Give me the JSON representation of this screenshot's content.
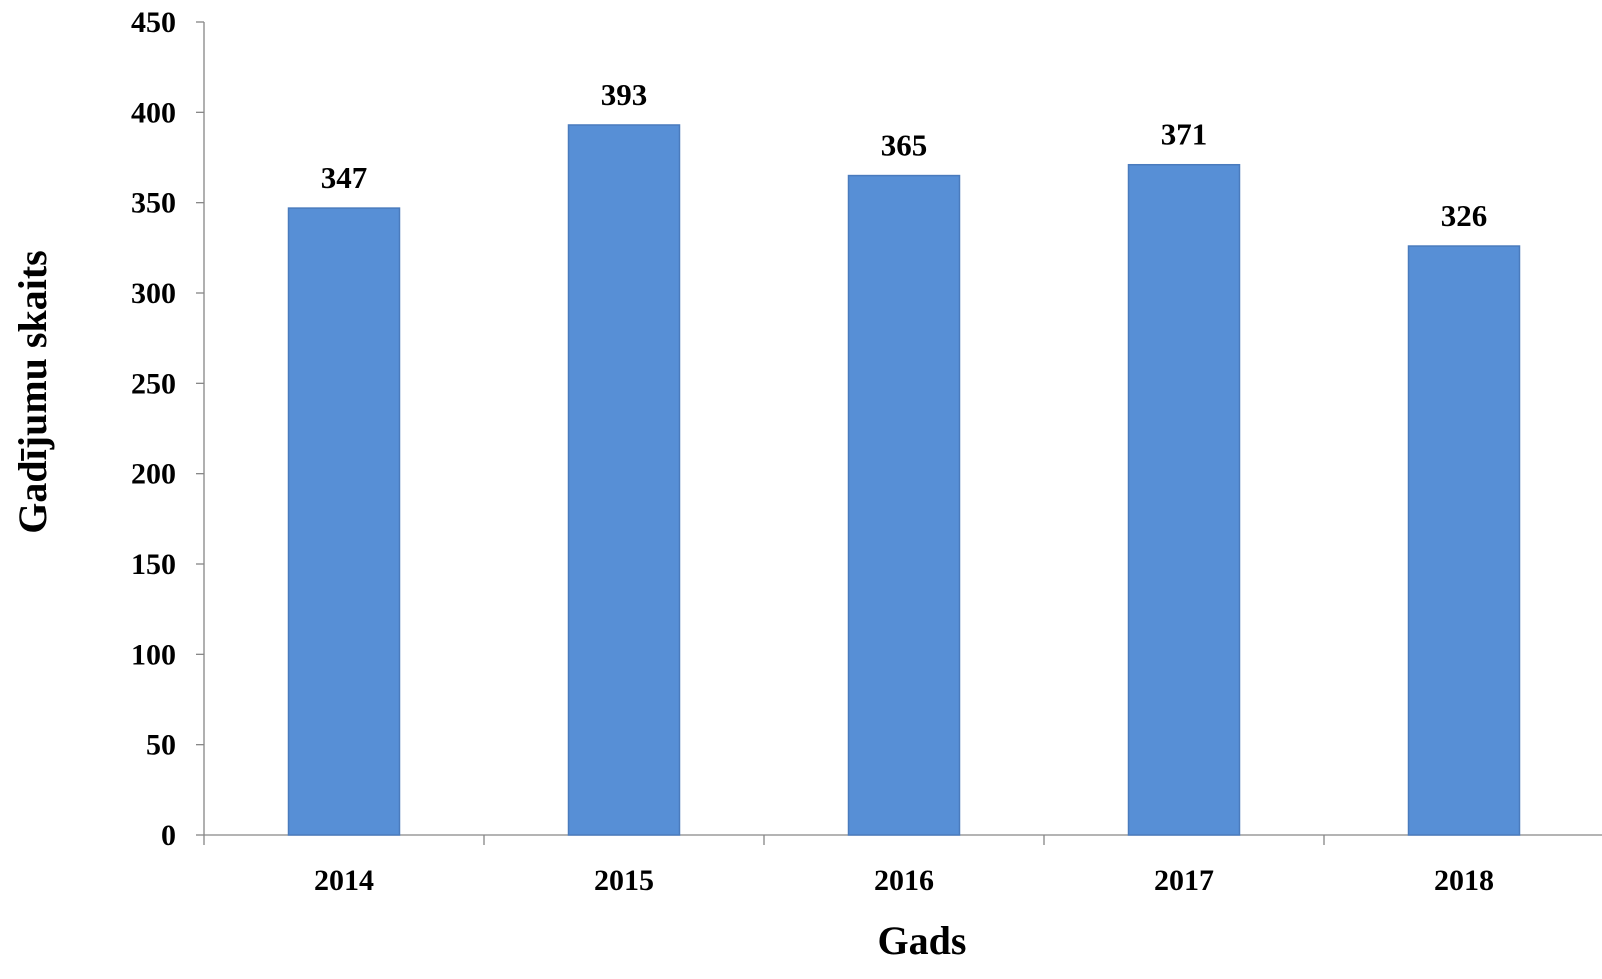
{
  "chart_data": {
    "type": "bar",
    "categories": [
      "2014",
      "2015",
      "2016",
      "2017",
      "2018"
    ],
    "values": [
      347,
      393,
      365,
      371,
      326
    ],
    "data_labels": [
      "347",
      "393",
      "365",
      "371",
      "326"
    ],
    "xlabel": "Gads",
    "ylabel": "Gadījumu skaits",
    "ylim": [
      0,
      450
    ],
    "yticks": [
      0,
      50,
      100,
      150,
      200,
      250,
      300,
      350,
      400,
      450
    ],
    "grid": false,
    "legend": "none",
    "bar_color": "#578fd6"
  }
}
